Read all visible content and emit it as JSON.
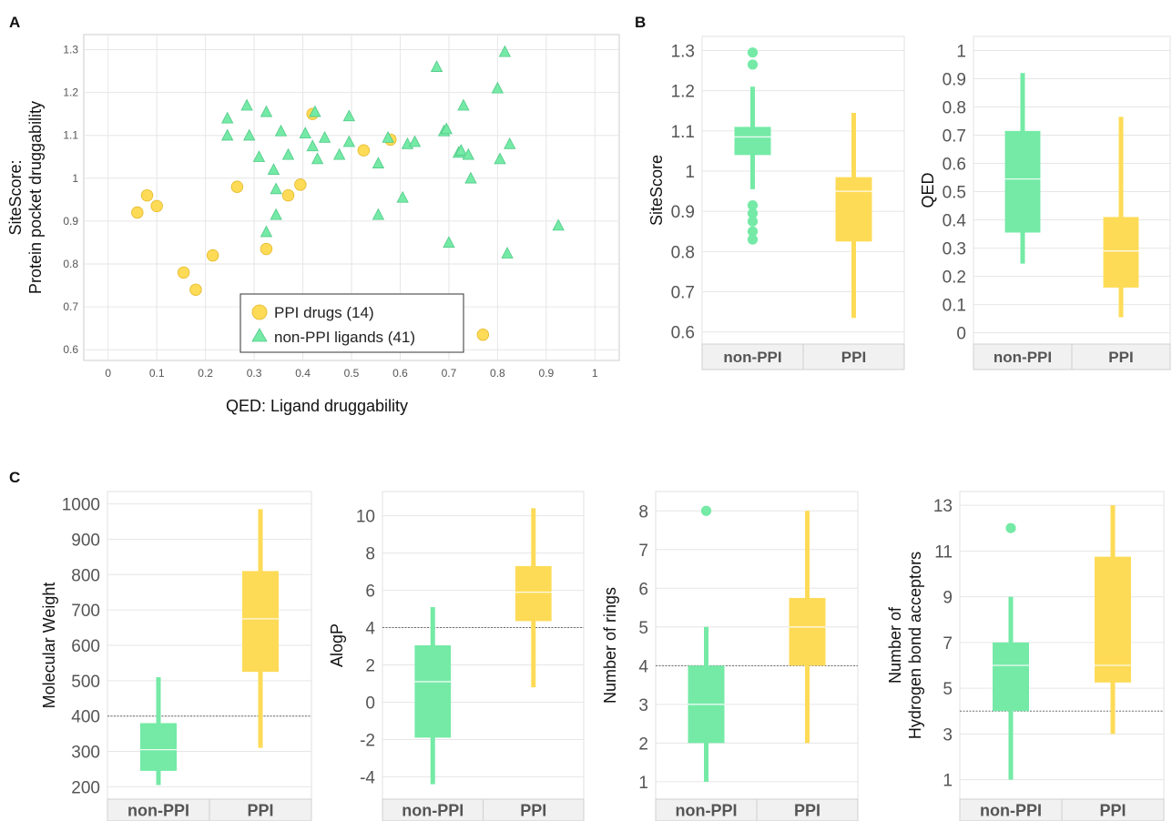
{
  "panel_labels": [
    "A",
    "B",
    "C"
  ],
  "colors": {
    "non_ppi": "#74eaa6",
    "non_ppi_stroke": "#50c987",
    "ppi": "#fedb57",
    "ppi_stroke": "#e3b829",
    "grid": "#e6e6e6",
    "frame": "#d4d4d4",
    "strip_bg": "#f1f1f1",
    "threshold": "#6b6b6b"
  },
  "chart_data": [
    {
      "id": "A",
      "type": "scatter",
      "xlabel": "QED: Ligand druggability",
      "ylabel": [
        "SiteScore:",
        "Protein pocket druggability"
      ],
      "xlim": [
        -0.05,
        1.05
      ],
      "ylim": [
        0.575,
        1.335
      ],
      "x_ticks": [
        0,
        0.1,
        0.2,
        0.3,
        0.4,
        0.5,
        0.6,
        0.7,
        0.8,
        0.9,
        1
      ],
      "x_tick_labels": [
        "0",
        "0.1",
        "0.2",
        "0.3",
        "0.4",
        "0.5",
        "0.6",
        "0.7",
        "0.8",
        "0.9",
        "1"
      ],
      "y_ticks": [
        0.6,
        0.7,
        0.8,
        0.9,
        1.0,
        1.1,
        1.2,
        1.3
      ],
      "y_tick_labels": [
        "0.6",
        "0.7",
        "0.8",
        "0.9",
        "1",
        "1.1",
        "1.2",
        "1.3"
      ],
      "legend_position": "bottom-center",
      "series": [
        {
          "name": "PPI drugs (14)",
          "marker": "circle",
          "points": [
            [
              0.06,
              0.92
            ],
            [
              0.08,
              0.96
            ],
            [
              0.1,
              0.935
            ],
            [
              0.155,
              0.78
            ],
            [
              0.18,
              0.74
            ],
            [
              0.215,
              0.82
            ],
            [
              0.265,
              0.98
            ],
            [
              0.325,
              0.835
            ],
            [
              0.37,
              0.96
            ],
            [
              0.395,
              0.985
            ],
            [
              0.42,
              1.15
            ],
            [
              0.525,
              1.065
            ],
            [
              0.58,
              1.09
            ],
            [
              0.77,
              0.635
            ]
          ]
        },
        {
          "name": "non-PPI ligands (41)",
          "marker": "triangle",
          "points": [
            [
              0.245,
              1.14
            ],
            [
              0.245,
              1.1
            ],
            [
              0.285,
              1.17
            ],
            [
              0.29,
              1.1
            ],
            [
              0.31,
              1.05
            ],
            [
              0.325,
              1.155
            ],
            [
              0.325,
              0.875
            ],
            [
              0.34,
              1.02
            ],
            [
              0.345,
              0.975
            ],
            [
              0.345,
              0.915
            ],
            [
              0.355,
              1.11
            ],
            [
              0.37,
              1.055
            ],
            [
              0.405,
              1.105
            ],
            [
              0.42,
              1.075
            ],
            [
              0.425,
              1.155
            ],
            [
              0.43,
              1.045
            ],
            [
              0.445,
              1.095
            ],
            [
              0.475,
              1.055
            ],
            [
              0.495,
              1.145
            ],
            [
              0.495,
              1.085
            ],
            [
              0.555,
              1.035
            ],
            [
              0.555,
              0.915
            ],
            [
              0.575,
              1.095
            ],
            [
              0.605,
              0.955
            ],
            [
              0.615,
              1.08
            ],
            [
              0.63,
              1.085
            ],
            [
              0.675,
              1.26
            ],
            [
              0.69,
              1.11
            ],
            [
              0.695,
              1.115
            ],
            [
              0.7,
              0.85
            ],
            [
              0.72,
              1.06
            ],
            [
              0.725,
              1.065
            ],
            [
              0.73,
              1.17
            ],
            [
              0.74,
              1.055
            ],
            [
              0.745,
              1.0
            ],
            [
              0.8,
              1.21
            ],
            [
              0.805,
              1.045
            ],
            [
              0.815,
              1.295
            ],
            [
              0.82,
              0.825
            ],
            [
              0.825,
              1.08
            ],
            [
              0.925,
              0.89
            ]
          ]
        }
      ]
    },
    {
      "id": "B1",
      "type": "box",
      "ylabel": "SiteScore",
      "ylim": [
        0.57,
        1.335
      ],
      "y_ticks": [
        0.6,
        0.7,
        0.8,
        0.9,
        1.0,
        1.1,
        1.2,
        1.3
      ],
      "y_tick_labels": [
        "0.6",
        "0.7",
        "0.8",
        "0.9",
        "1",
        "1.1",
        "1.2",
        "1.3"
      ],
      "categories": [
        "non-PPI",
        "PPI"
      ],
      "boxes": [
        {
          "whisker_low": 0.955,
          "q1": 1.04,
          "median": 1.085,
          "q3": 1.11,
          "whisker_high": 1.21,
          "outliers": [
            1.295,
            1.265,
            0.915,
            0.895,
            0.875,
            0.85,
            0.83
          ]
        },
        {
          "whisker_low": 0.635,
          "q1": 0.825,
          "median": 0.95,
          "q3": 0.985,
          "whisker_high": 1.145,
          "outliers": []
        }
      ]
    },
    {
      "id": "B2",
      "type": "box",
      "ylabel": "QED",
      "ylim": [
        -0.04,
        1.05
      ],
      "y_ticks": [
        0,
        0.1,
        0.2,
        0.3,
        0.4,
        0.5,
        0.6,
        0.7,
        0.8,
        0.9,
        1
      ],
      "y_tick_labels": [
        "0",
        "0.1",
        "0.2",
        "0.3",
        "0.4",
        "0.5",
        "0.6",
        "0.7",
        "0.8",
        "0.9",
        "1"
      ],
      "categories": [
        "non-PPI",
        "PPI"
      ],
      "boxes": [
        {
          "whisker_low": 0.245,
          "q1": 0.355,
          "median": 0.545,
          "q3": 0.715,
          "whisker_high": 0.92,
          "outliers": []
        },
        {
          "whisker_low": 0.055,
          "q1": 0.16,
          "median": 0.29,
          "q3": 0.41,
          "whisker_high": 0.765,
          "outliers": []
        }
      ]
    },
    {
      "id": "C1",
      "type": "box",
      "ylabel": "Molecular Weight",
      "ylim": [
        165,
        1035
      ],
      "y_ticks": [
        200,
        300,
        400,
        500,
        600,
        700,
        800,
        900,
        1000
      ],
      "y_tick_labels": [
        "200",
        "300",
        "400",
        "500",
        "600",
        "700",
        "800",
        "900",
        "1000"
      ],
      "threshold": 400,
      "categories": [
        "non-PPI",
        "PPI"
      ],
      "boxes": [
        {
          "whisker_low": 205,
          "q1": 245,
          "median": 305,
          "q3": 380,
          "whisker_high": 510,
          "outliers": []
        },
        {
          "whisker_low": 310,
          "q1": 525,
          "median": 675,
          "q3": 810,
          "whisker_high": 985,
          "outliers": []
        }
      ]
    },
    {
      "id": "C2",
      "type": "box",
      "ylabel": "AlogP",
      "ylim": [
        -5.2,
        11.3
      ],
      "y_ticks": [
        -4,
        -2,
        0,
        2,
        4,
        6,
        8,
        10
      ],
      "y_tick_labels": [
        "-4",
        "-2",
        "0",
        "2",
        "4",
        "6",
        "8",
        "10"
      ],
      "threshold": 4,
      "categories": [
        "non-PPI",
        "PPI"
      ],
      "boxes": [
        {
          "whisker_low": -4.4,
          "q1": -1.9,
          "median": 1.1,
          "q3": 3.05,
          "whisker_high": 5.1,
          "outliers": []
        },
        {
          "whisker_low": 0.8,
          "q1": 4.35,
          "median": 5.9,
          "q3": 7.3,
          "whisker_high": 10.4,
          "outliers": []
        }
      ]
    },
    {
      "id": "C3",
      "type": "box",
      "ylabel": "Number of rings",
      "ylim": [
        0.55,
        8.5
      ],
      "y_ticks": [
        1,
        2,
        3,
        4,
        5,
        6,
        7,
        8
      ],
      "y_tick_labels": [
        "1",
        "2",
        "3",
        "4",
        "5",
        "6",
        "7",
        "8"
      ],
      "threshold": 4,
      "categories": [
        "non-PPI",
        "PPI"
      ],
      "boxes": [
        {
          "whisker_low": 1,
          "q1": 2,
          "median": 3,
          "q3": 4,
          "whisker_high": 5,
          "outliers": [
            8
          ]
        },
        {
          "whisker_low": 2,
          "q1": 4,
          "median": 5,
          "q3": 5.75,
          "whisker_high": 8,
          "outliers": []
        }
      ]
    },
    {
      "id": "C4",
      "type": "box",
      "ylabel": [
        "Number of",
        "Hydrogen bond acceptors"
      ],
      "ylim": [
        0.15,
        13.6
      ],
      "y_ticks": [
        1,
        3,
        5,
        7,
        9,
        11,
        13
      ],
      "y_tick_labels": [
        "1",
        "3",
        "5",
        "7",
        "9",
        "11",
        "13"
      ],
      "threshold": 4,
      "categories": [
        "non-PPI",
        "PPI"
      ],
      "boxes": [
        {
          "whisker_low": 1,
          "q1": 4,
          "median": 6,
          "q3": 7,
          "whisker_high": 9,
          "outliers": [
            12
          ]
        },
        {
          "whisker_low": 3,
          "q1": 5.25,
          "median": 6,
          "q3": 10.75,
          "whisker_high": 13,
          "outliers": []
        }
      ]
    }
  ]
}
